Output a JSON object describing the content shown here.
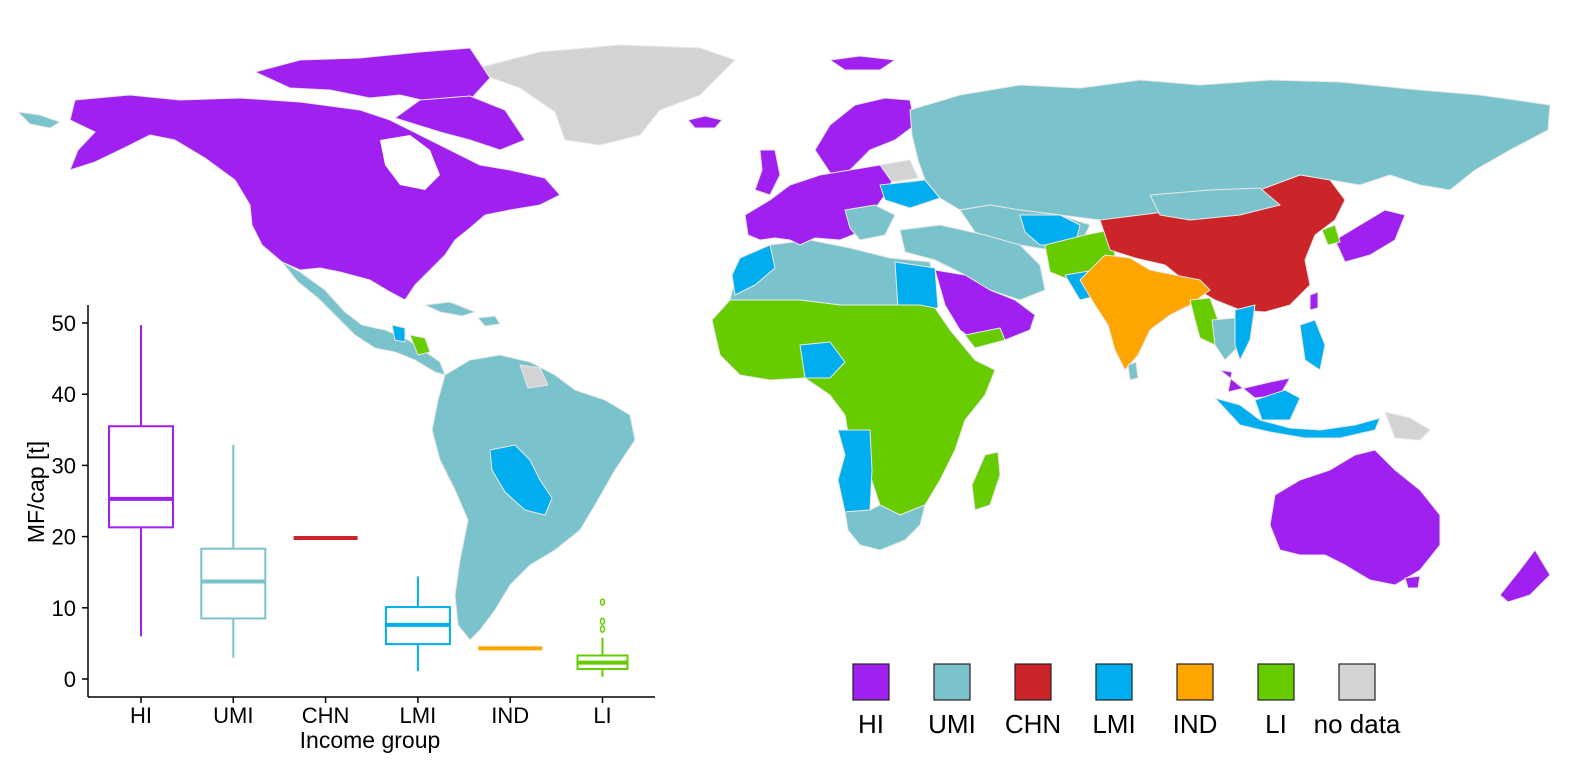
{
  "map": {
    "regions": [
      {
        "name": "North America",
        "group": "HI"
      },
      {
        "name": "Greenland",
        "group": "no data"
      },
      {
        "name": "Europe",
        "group": "HI"
      },
      {
        "name": "Russia",
        "group": "UMI"
      },
      {
        "name": "China",
        "group": "CHN"
      },
      {
        "name": "India",
        "group": "IND"
      },
      {
        "name": "Australia",
        "group": "HI"
      },
      {
        "name": "New Zealand",
        "group": "HI"
      },
      {
        "name": "Japan",
        "group": "HI"
      },
      {
        "name": "Arabian Peninsula",
        "group": "HI"
      },
      {
        "name": "Mexico & Central America",
        "group": "UMI"
      },
      {
        "name": "South America",
        "group": "UMI"
      },
      {
        "name": "Bolivia",
        "group": "LMI"
      },
      {
        "name": "North Africa",
        "group": "UMI"
      },
      {
        "name": "Egypt",
        "group": "LMI"
      },
      {
        "name": "Sub-Saharan Africa",
        "group": "LI"
      },
      {
        "name": "Southern Africa",
        "group": "UMI"
      },
      {
        "name": "Angola",
        "group": "LMI"
      },
      {
        "name": "Madagascar",
        "group": "LI"
      },
      {
        "name": "Indonesia",
        "group": "LMI"
      },
      {
        "name": "Papua New Guinea",
        "group": "no data"
      }
    ]
  },
  "legend": {
    "items": [
      {
        "label": "HI",
        "color": "#a020f0"
      },
      {
        "label": "UMI",
        "color": "#7bc3cc"
      },
      {
        "label": "CHN",
        "color": "#cc2529"
      },
      {
        "label": "LMI",
        "color": "#00aeef"
      },
      {
        "label": "IND",
        "color": "#ffa500"
      },
      {
        "label": "LI",
        "color": "#66cc00"
      },
      {
        "label": "no data",
        "color": "#d3d3d3"
      }
    ]
  },
  "chart_data": {
    "type": "boxplot",
    "xlabel": "Income group",
    "ylabel": "MF/cap [t]",
    "ylim": [
      0,
      52
    ],
    "yticks": [
      0,
      10,
      20,
      30,
      40,
      50
    ],
    "categories": [
      "HI",
      "UMI",
      "CHN",
      "LMI",
      "IND",
      "LI"
    ],
    "boxes": [
      {
        "category": "HI",
        "color": "#a020f0",
        "whisker_low": 6.0,
        "q1": 21.3,
        "median": 25.3,
        "q3": 35.5,
        "whisker_high": 49.7,
        "outliers": []
      },
      {
        "category": "UMI",
        "color": "#7bc3cc",
        "whisker_low": 3.0,
        "q1": 8.5,
        "median": 13.7,
        "q3": 18.3,
        "whisker_high": 32.9,
        "outliers": []
      },
      {
        "category": "CHN",
        "color": "#cc2529",
        "whisker_low": 19.8,
        "q1": 19.8,
        "median": 19.8,
        "q3": 19.8,
        "whisker_high": 19.8,
        "outliers": []
      },
      {
        "category": "LMI",
        "color": "#00aeef",
        "whisker_low": 1.1,
        "q1": 4.9,
        "median": 7.6,
        "q3": 10.1,
        "whisker_high": 14.4,
        "outliers": []
      },
      {
        "category": "IND",
        "color": "#ffa500",
        "whisker_low": 4.3,
        "q1": 4.3,
        "median": 4.3,
        "q3": 4.3,
        "whisker_high": 4.3,
        "outliers": []
      },
      {
        "category": "LI",
        "color": "#66cc00",
        "whisker_low": 0.3,
        "q1": 1.4,
        "median": 2.3,
        "q3": 3.3,
        "whisker_high": 5.8,
        "outliers": [
          7.0,
          8.1,
          10.8
        ]
      }
    ]
  }
}
